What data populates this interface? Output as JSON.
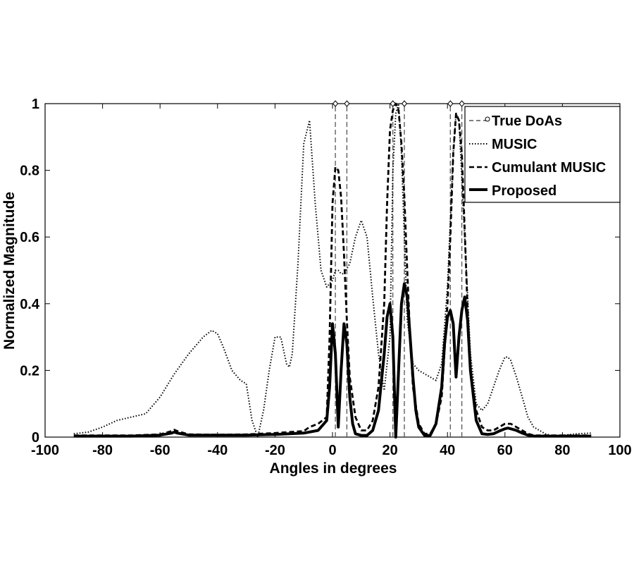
{
  "chart_data": {
    "type": "line",
    "title": "",
    "xlabel": "Angles in degrees",
    "ylabel": "Normalized Magnitude",
    "xlim": [
      -100,
      100
    ],
    "ylim": [
      0,
      1
    ],
    "x_ticks": [
      -100,
      -80,
      -60,
      -40,
      -20,
      0,
      20,
      40,
      60,
      80,
      100
    ],
    "y_ticks": [
      0,
      0.2,
      0.4,
      0.6,
      0.8,
      1
    ],
    "grid": false,
    "legend_position": "top-right",
    "true_doas": [
      1,
      5,
      21,
      25,
      41,
      45
    ],
    "series": [
      {
        "name": "True DoAs",
        "style": "dashed-stem-diamond",
        "color": "#555555",
        "x": [
          1,
          5,
          21,
          25,
          41,
          45
        ],
        "values": [
          1,
          1,
          1,
          1,
          1,
          1
        ]
      },
      {
        "name": "MUSIC",
        "style": "dotted",
        "color": "#000000",
        "x": [
          -90,
          -85,
          -80,
          -75,
          -70,
          -65,
          -60,
          -55,
          -50,
          -45,
          -42,
          -40,
          -38,
          -35,
          -32,
          -30,
          -28,
          -26,
          -24,
          -22,
          -20,
          -18,
          -16,
          -15,
          -14,
          -12,
          -10,
          -8,
          -6,
          -4,
          -2,
          0,
          1,
          2,
          3,
          4,
          6,
          8,
          10,
          12,
          14,
          16,
          18,
          20,
          21,
          22,
          23,
          24,
          26,
          28,
          30,
          32,
          34,
          36,
          38,
          40,
          42,
          43,
          44,
          46,
          48,
          50,
          52,
          54,
          56,
          58,
          60,
          61,
          62,
          64,
          66,
          68,
          70,
          72,
          74,
          76,
          78,
          80,
          85,
          90
        ],
        "values": [
          0.01,
          0.015,
          0.03,
          0.05,
          0.06,
          0.07,
          0.12,
          0.19,
          0.25,
          0.3,
          0.32,
          0.31,
          0.27,
          0.2,
          0.17,
          0.16,
          0.05,
          0.0,
          0.08,
          0.2,
          0.3,
          0.3,
          0.22,
          0.21,
          0.25,
          0.52,
          0.88,
          0.95,
          0.7,
          0.5,
          0.45,
          0.47,
          0.5,
          0.5,
          0.49,
          0.49,
          0.52,
          0.6,
          0.65,
          0.6,
          0.42,
          0.25,
          0.14,
          0.3,
          0.8,
          0.97,
          1.0,
          0.85,
          0.35,
          0.22,
          0.2,
          0.19,
          0.18,
          0.17,
          0.22,
          0.45,
          0.85,
          0.97,
          0.95,
          0.6,
          0.25,
          0.1,
          0.08,
          0.1,
          0.15,
          0.2,
          0.24,
          0.24,
          0.23,
          0.18,
          0.12,
          0.06,
          0.03,
          0.02,
          0.01,
          0.005,
          0.003,
          0.005,
          0.01,
          0.012
        ]
      },
      {
        "name": "Cumulant MUSIC",
        "style": "dashed",
        "color": "#000000",
        "x": [
          -90,
          -80,
          -70,
          -60,
          -56,
          -55,
          -54,
          -50,
          -40,
          -30,
          -20,
          -10,
          -8,
          -5,
          -2,
          -1,
          0,
          1,
          2,
          3,
          4,
          5,
          6,
          8,
          10,
          12,
          14,
          16,
          18,
          19,
          20,
          21,
          22,
          23,
          24,
          25,
          26,
          27,
          28,
          30,
          32,
          34,
          36,
          38,
          40,
          41,
          42,
          43,
          44,
          45,
          46,
          47,
          48,
          50,
          52,
          54,
          56,
          58,
          60,
          62,
          64,
          66,
          68,
          70,
          75,
          80,
          90
        ],
        "values": [
          0.005,
          0.005,
          0.005,
          0.008,
          0.018,
          0.022,
          0.018,
          0.008,
          0.007,
          0.008,
          0.012,
          0.018,
          0.03,
          0.04,
          0.06,
          0.3,
          0.7,
          0.81,
          0.8,
          0.72,
          0.55,
          0.35,
          0.18,
          0.06,
          0.02,
          0.02,
          0.05,
          0.15,
          0.4,
          0.7,
          0.92,
          0.98,
          1.0,
          0.98,
          0.88,
          0.72,
          0.5,
          0.3,
          0.15,
          0.04,
          0.01,
          0.01,
          0.04,
          0.12,
          0.4,
          0.6,
          0.85,
          0.97,
          0.95,
          0.85,
          0.62,
          0.38,
          0.2,
          0.08,
          0.03,
          0.02,
          0.02,
          0.03,
          0.04,
          0.04,
          0.03,
          0.02,
          0.01,
          0.005,
          0.005,
          0.005,
          0.005
        ]
      },
      {
        "name": "Proposed",
        "style": "solid-thick",
        "color": "#000000",
        "x": [
          -90,
          -80,
          -70,
          -60,
          -56,
          -55,
          -54,
          -50,
          -40,
          -30,
          -20,
          -10,
          -5,
          -2,
          -1,
          0,
          1,
          2,
          3,
          4,
          5,
          6,
          7,
          8,
          10,
          12,
          14,
          16,
          18,
          19,
          20,
          21,
          22,
          23,
          24,
          25,
          26,
          27,
          28,
          29,
          30,
          32,
          34,
          36,
          38,
          39,
          40,
          41,
          42,
          43,
          44,
          45,
          46,
          47,
          48,
          50,
          52,
          54,
          56,
          58,
          60,
          61,
          62,
          64,
          66,
          68,
          70,
          75,
          80,
          90
        ],
        "values": [
          0.003,
          0.003,
          0.003,
          0.006,
          0.012,
          0.015,
          0.012,
          0.006,
          0.006,
          0.006,
          0.008,
          0.012,
          0.02,
          0.05,
          0.15,
          0.34,
          0.25,
          0.03,
          0.2,
          0.34,
          0.28,
          0.12,
          0.04,
          0.01,
          0.005,
          0.005,
          0.02,
          0.08,
          0.25,
          0.36,
          0.4,
          0.3,
          0.0,
          0.2,
          0.4,
          0.46,
          0.42,
          0.3,
          0.18,
          0.08,
          0.03,
          0.005,
          0.005,
          0.04,
          0.15,
          0.28,
          0.36,
          0.38,
          0.34,
          0.18,
          0.3,
          0.38,
          0.42,
          0.35,
          0.2,
          0.05,
          0.01,
          0.008,
          0.01,
          0.018,
          0.025,
          0.027,
          0.025,
          0.02,
          0.012,
          0.006,
          0.003,
          0.003,
          0.003,
          0.003
        ]
      }
    ]
  }
}
